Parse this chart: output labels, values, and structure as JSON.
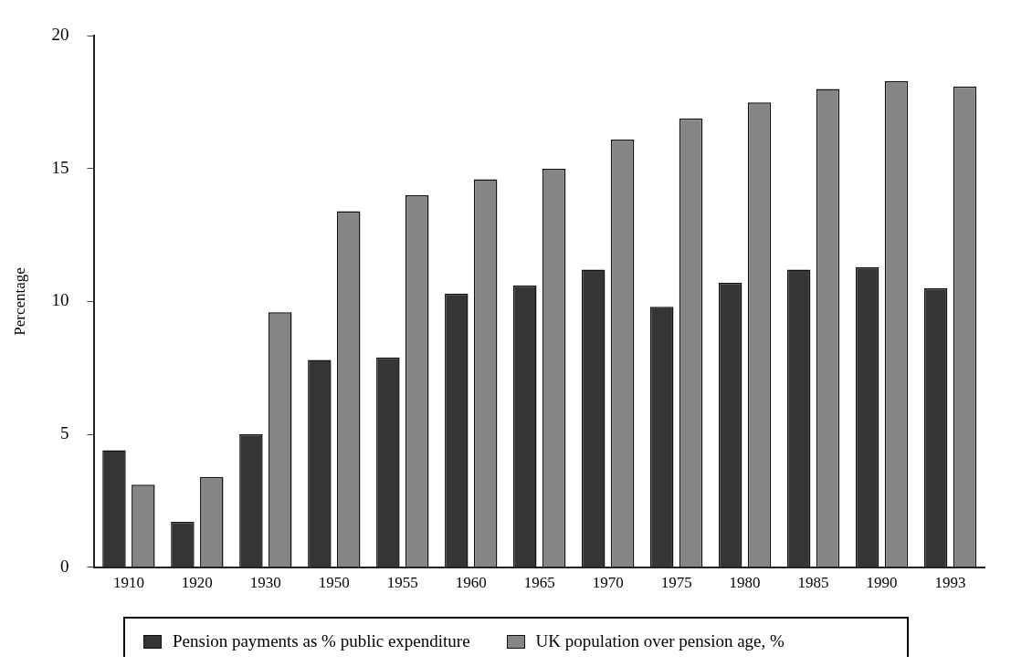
{
  "chart_data": {
    "type": "bar",
    "ylabel": "Percentage",
    "categories": [
      "1910",
      "1920",
      "1930",
      "1950",
      "1955",
      "1960",
      "1965",
      "1970",
      "1975",
      "1980",
      "1985",
      "1990",
      "1993"
    ],
    "series": [
      {
        "name": "Pension payments as % public expenditure",
        "color": "#353535",
        "values": [
          4.4,
          1.7,
          5.0,
          7.8,
          7.9,
          10.3,
          10.6,
          11.2,
          9.8,
          10.7,
          11.2,
          11.3,
          10.5
        ]
      },
      {
        "name": "UK population over pension age, %",
        "color": "#858585",
        "values": [
          3.1,
          3.4,
          9.6,
          13.4,
          14.0,
          14.6,
          15.0,
          16.1,
          16.9,
          17.5,
          18.0,
          18.3,
          18.1
        ]
      }
    ],
    "ylim": [
      0,
      20
    ],
    "yticks": [
      0,
      5,
      10,
      15,
      20
    ],
    "grid": false,
    "legend": "bottom"
  }
}
